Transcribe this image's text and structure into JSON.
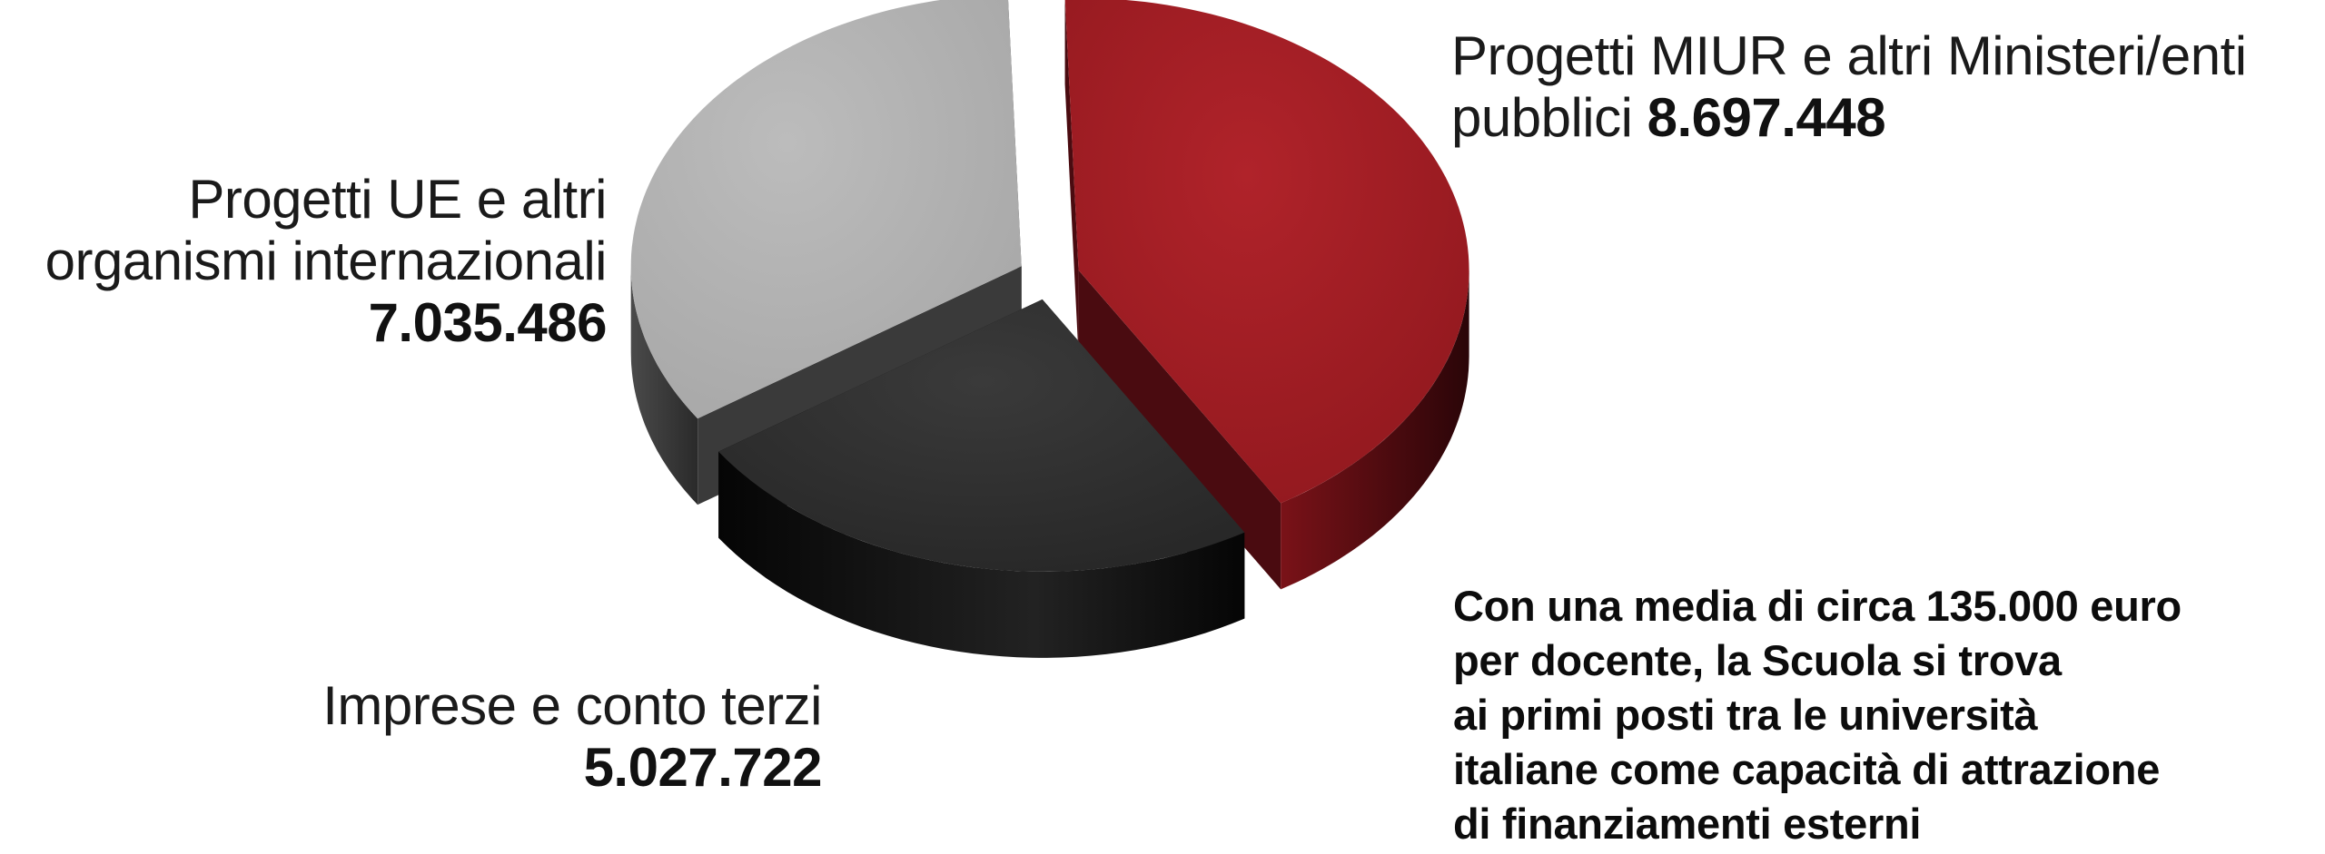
{
  "chart_data": {
    "type": "pie",
    "style": "3d-exploded",
    "title": "",
    "slices": [
      {
        "label": "Progetti MIUR e altri Ministeri/enti pubblici",
        "label_lines": [
          "Progetti MIUR e altri Ministeri/enti",
          "pubblici"
        ],
        "value": 8697448,
        "value_label": "8.697.448",
        "color": "#a31d23",
        "side_color": "#4a0b10"
      },
      {
        "label": "Imprese e conto terzi",
        "label_lines": [
          "Imprese e conto terzi"
        ],
        "value": 5027722,
        "value_label": "5.027.722",
        "color": "#2f2f2f",
        "side_color": "#0a0a0a"
      },
      {
        "label": "Progetti UE e altri organismi internazionali",
        "label_lines": [
          "Progetti UE e altri",
          "organismi internazionali"
        ],
        "value": 7035486,
        "value_label": "7.035.486",
        "color": "#b1b1b1",
        "side_color": "#3a3a3a"
      }
    ],
    "legend": "none"
  },
  "note": {
    "lines": [
      "Con una media di circa 135.000 euro",
      "per docente, la Scuola si trova",
      "ai primi posti tra le università",
      "italiane come capacità di attrazione",
      "di finanziamenti esterni"
    ]
  }
}
